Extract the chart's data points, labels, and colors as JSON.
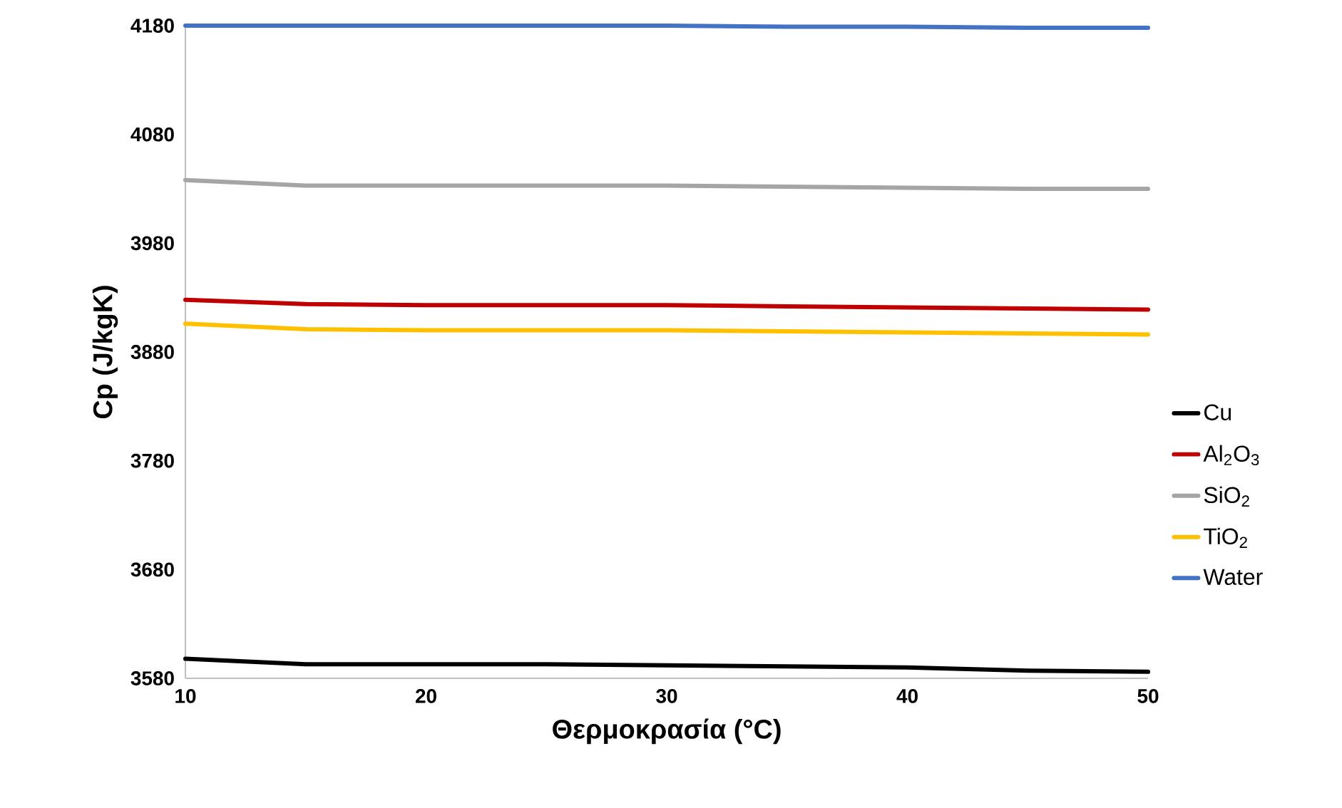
{
  "chart_data": {
    "type": "line",
    "xlabel": "Θερμοκρασία (°C)",
    "ylabel": "Cp (J/kgK)",
    "x": [
      10,
      15,
      20,
      25,
      30,
      35,
      40,
      45,
      50
    ],
    "xlim": [
      10,
      50
    ],
    "xticks": [
      10,
      20,
      30,
      40,
      50
    ],
    "ylim": [
      3580,
      4180
    ],
    "yticks": [
      3580,
      3680,
      3780,
      3880,
      3980,
      4080,
      4180
    ],
    "legend": "right",
    "series": [
      {
        "name": "Cu",
        "color": "#000000",
        "values": [
          3598,
          3593,
          3593,
          3593,
          3592,
          3591,
          3590,
          3587,
          3586
        ]
      },
      {
        "name": "Al$_{2}$O$_{3}$",
        "color": "#c00000",
        "values": [
          3928,
          3924,
          3923,
          3923,
          3923,
          3922,
          3921,
          3920,
          3919
        ]
      },
      {
        "name": "SiO$_{2}$",
        "color": "#a5a5a5",
        "values": [
          4038,
          4033,
          4033,
          4033,
          4033,
          4032,
          4031,
          4030,
          4030
        ]
      },
      {
        "name": "TiO$_{2}$",
        "color": "#ffc000",
        "values": [
          3906,
          3901,
          3900,
          3900,
          3900,
          3899,
          3898,
          3897,
          3896
        ]
      },
      {
        "name": "Water",
        "color": "#4472c4",
        "values": [
          4180,
          4180,
          4180,
          4180,
          4180,
          4179,
          4179,
          4178,
          4178
        ]
      }
    ]
  }
}
